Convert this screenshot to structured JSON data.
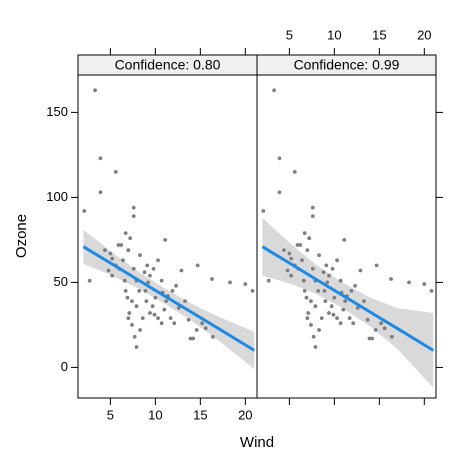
{
  "chart_data": {
    "type": "scatter",
    "xlabel": "Wind",
    "ylabel": "Ozone",
    "xlim": [
      1.4,
      21.3
    ],
    "ylim": [
      -18,
      172
    ],
    "xticks": [
      5,
      10,
      15,
      20
    ],
    "yticks": [
      0,
      50,
      100,
      150
    ],
    "point_color": "#7f7f7f",
    "line_color": "#1e88e5",
    "band_color": "#d9d9d9",
    "strip_color": "#f0f0f0",
    "x": [
      3.3,
      3.9,
      3.9,
      5.6,
      2.1,
      2.7,
      4.4,
      5.0,
      5.2,
      5.9,
      6.2,
      6.4,
      5.6,
      4.8,
      5.2,
      6.0,
      6.7,
      7.6,
      7.6,
      7.2,
      7.0,
      7.6,
      7.9,
      6.7,
      6.9,
      7.4,
      7.9,
      7.1,
      7.0,
      7.4,
      7.7,
      7.9,
      8.3,
      8.6,
      8.9,
      9.2,
      9.4,
      9.8,
      9.1,
      10.3,
      10.7,
      10.0,
      9.7,
      9.4,
      9.9,
      10.3,
      10.7,
      11.0,
      11.2,
      11.4,
      11.9,
      11.7,
      12.1,
      12.6,
      12.3,
      12.9,
      13.3,
      13.7,
      13.9,
      14.2,
      14.6,
      15.2,
      15.6,
      16.4,
      16.3,
      18.3,
      20.0,
      20.8,
      14.7,
      11.1,
      8.3,
      8.8,
      10.8,
      9.0,
      8.2,
      6.6
    ],
    "y": [
      163,
      123,
      103,
      115,
      92,
      51,
      69,
      67,
      64,
      72,
      72,
      63,
      60,
      57,
      54,
      58,
      79,
      94,
      89,
      76,
      69,
      58,
      51,
      45,
      41,
      39,
      36,
      32,
      29,
      25,
      18,
      12,
      22,
      29,
      45,
      50,
      54,
      58,
      60,
      63,
      51,
      41,
      36,
      32,
      31,
      29,
      26,
      34,
      39,
      42,
      45,
      29,
      26,
      35,
      48,
      57,
      39,
      28,
      17,
      17,
      22,
      26,
      23,
      18,
      52,
      50,
      49,
      45,
      60,
      75,
      66,
      56,
      44,
      39,
      45,
      51
    ],
    "fit_x": [
      2,
      5,
      8,
      11,
      14,
      17,
      21
    ],
    "panels": [
      {
        "title": "Confidence: 0.80",
        "fit": [
          71,
          61.4,
          51.7,
          42.1,
          32.5,
          22.9,
          10
        ],
        "lower": [
          61,
          54.4,
          46.7,
          37.6,
          27.5,
          15.9,
          -1
        ],
        "upper": [
          81,
          68.4,
          56.7,
          46.6,
          37.5,
          29.9,
          21
        ]
      },
      {
        "title": "Confidence: 0.99",
        "fit": [
          71,
          61.4,
          51.7,
          42.1,
          32.5,
          22.9,
          10
        ],
        "lower": [
          54,
          49.4,
          43.2,
          34.6,
          24,
          10.9,
          -12
        ],
        "upper": [
          88,
          73.4,
          60.2,
          49.6,
          41,
          34.9,
          32
        ]
      }
    ]
  }
}
